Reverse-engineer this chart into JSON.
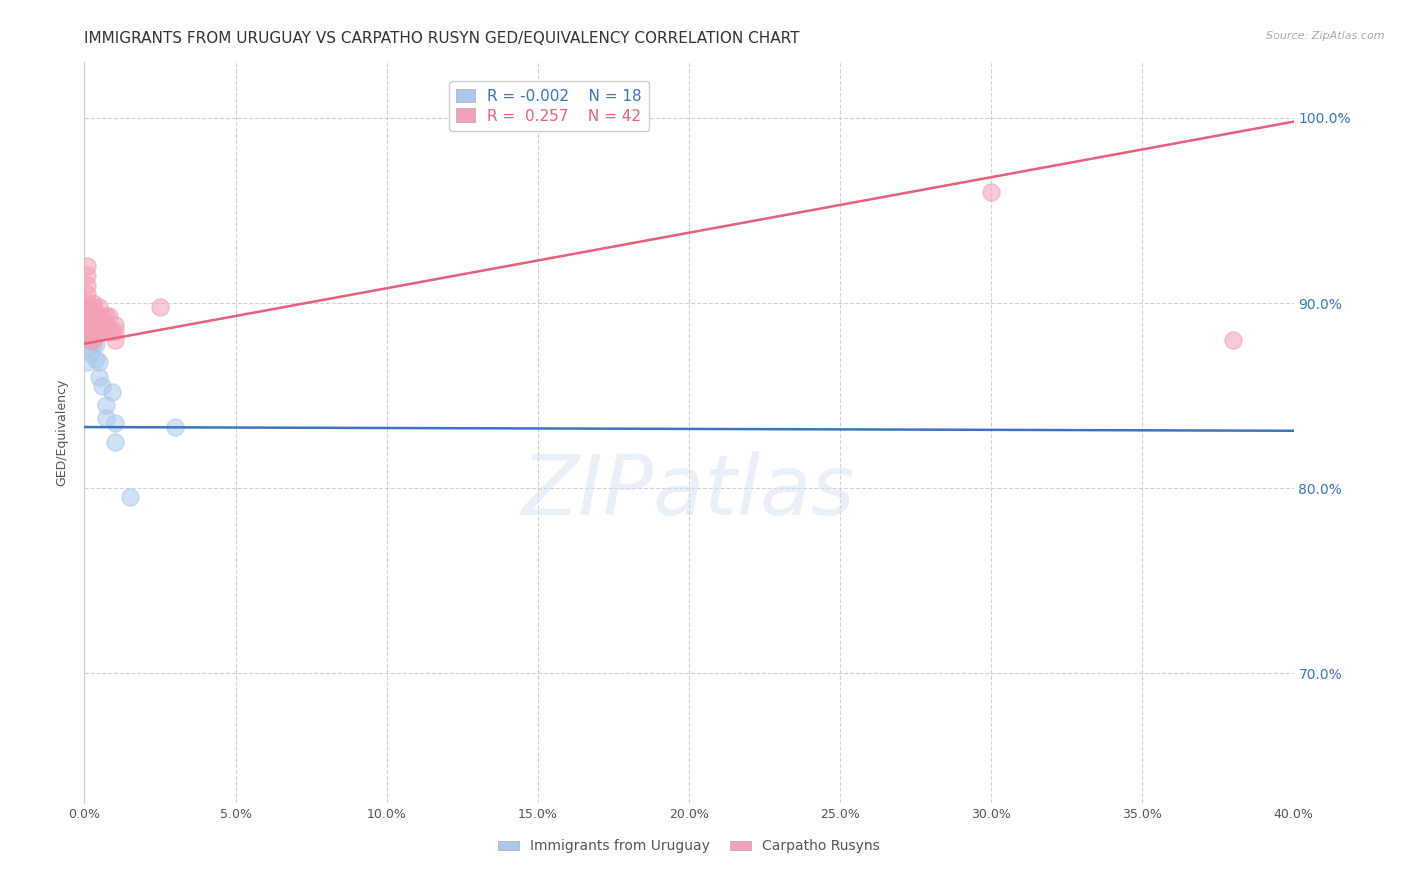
{
  "title": "IMMIGRANTS FROM URUGUAY VS CARPATHO RUSYN GED/EQUIVALENCY CORRELATION CHART",
  "source": "Source: ZipAtlas.com",
  "xlabel": "",
  "ylabel": "GED/Equivalency",
  "xlim": [
    0.0,
    0.4
  ],
  "ylim": [
    0.63,
    1.03
  ],
  "xticks": [
    0.0,
    0.05,
    0.1,
    0.15,
    0.2,
    0.25,
    0.3,
    0.35,
    0.4
  ],
  "ytick_positions": [
    0.7,
    0.8,
    0.9,
    1.0
  ],
  "ytick_labels_right": [
    "70.0%",
    "80.0%",
    "90.0%",
    "100.0%"
  ],
  "grid_yticks": [
    0.7,
    0.8,
    0.9,
    1.0
  ],
  "grid_color": "#cccccc",
  "background_color": "#ffffff",
  "watermark": "ZIPatlas",
  "series": [
    {
      "name": "Immigrants from Uruguay",
      "color": "#aac8ee",
      "R": -0.002,
      "N": 18,
      "x": [
        0.001,
        0.001,
        0.002,
        0.002,
        0.003,
        0.003,
        0.004,
        0.004,
        0.005,
        0.005,
        0.006,
        0.007,
        0.007,
        0.009,
        0.01,
        0.01,
        0.015,
        0.03
      ],
      "y": [
        0.868,
        0.876,
        0.873,
        0.88,
        0.878,
        0.886,
        0.87,
        0.878,
        0.868,
        0.86,
        0.855,
        0.845,
        0.838,
        0.852,
        0.835,
        0.825,
        0.795,
        0.833
      ],
      "trend_x": [
        0.0,
        0.4
      ],
      "trend_y": [
        0.833,
        0.831
      ],
      "trend_color": "#3a75c4",
      "trend_linewidth": 1.8
    },
    {
      "name": "Carpatho Rusyns",
      "color": "#f4a0b5",
      "R": 0.257,
      "N": 42,
      "x": [
        0.001,
        0.001,
        0.001,
        0.001,
        0.001,
        0.001,
        0.001,
        0.001,
        0.002,
        0.002,
        0.002,
        0.002,
        0.002,
        0.002,
        0.003,
        0.003,
        0.003,
        0.003,
        0.003,
        0.003,
        0.003,
        0.004,
        0.004,
        0.004,
        0.005,
        0.005,
        0.005,
        0.005,
        0.006,
        0.006,
        0.006,
        0.007,
        0.007,
        0.008,
        0.008,
        0.009,
        0.01,
        0.01,
        0.01,
        0.025,
        0.3,
        0.38
      ],
      "y": [
        0.92,
        0.915,
        0.91,
        0.905,
        0.9,
        0.898,
        0.895,
        0.89,
        0.895,
        0.89,
        0.888,
        0.885,
        0.882,
        0.88,
        0.9,
        0.898,
        0.895,
        0.892,
        0.888,
        0.885,
        0.88,
        0.893,
        0.89,
        0.888,
        0.898,
        0.893,
        0.89,
        0.885,
        0.893,
        0.89,
        0.885,
        0.893,
        0.888,
        0.893,
        0.885,
        0.885,
        0.888,
        0.885,
        0.88,
        0.898,
        0.96,
        0.88
      ],
      "trend_x": [
        0.0,
        0.4
      ],
      "trend_y": [
        0.878,
        0.998
      ],
      "trend_color": "#e8607a",
      "trend_linewidth": 1.8
    }
  ],
  "title_fontsize": 11,
  "axis_label_color": "#3a75c4",
  "watermark_color": "#d0dff5",
  "watermark_fontsize": 60,
  "watermark_alpha": 0.45
}
